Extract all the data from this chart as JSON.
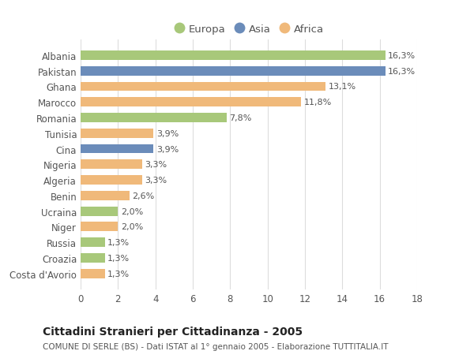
{
  "countries": [
    "Albania",
    "Pakistan",
    "Ghana",
    "Marocco",
    "Romania",
    "Tunisia",
    "Cina",
    "Nigeria",
    "Algeria",
    "Benin",
    "Ucraina",
    "Niger",
    "Russia",
    "Croazia",
    "Costa d'Avorio"
  ],
  "values": [
    16.3,
    16.3,
    13.1,
    11.8,
    7.8,
    3.9,
    3.9,
    3.3,
    3.3,
    2.6,
    2.0,
    2.0,
    1.3,
    1.3,
    1.3
  ],
  "labels": [
    "16,3%",
    "16,3%",
    "13,1%",
    "11,8%",
    "7,8%",
    "3,9%",
    "3,9%",
    "3,3%",
    "3,3%",
    "2,6%",
    "2,0%",
    "2,0%",
    "1,3%",
    "1,3%",
    "1,3%"
  ],
  "continents": [
    "Europa",
    "Asia",
    "Africa",
    "Africa",
    "Europa",
    "Africa",
    "Asia",
    "Africa",
    "Africa",
    "Africa",
    "Europa",
    "Africa",
    "Europa",
    "Europa",
    "Africa"
  ],
  "colors": {
    "Europa": "#a8c87a",
    "Asia": "#6b8cba",
    "Africa": "#f0b97a"
  },
  "xlim": [
    0,
    18
  ],
  "xticks": [
    0,
    2,
    4,
    6,
    8,
    10,
    12,
    14,
    16,
    18
  ],
  "title": "Cittadini Stranieri per Cittadinanza - 2005",
  "subtitle": "COMUNE DI SERLE (BS) - Dati ISTAT al 1° gennaio 2005 - Elaborazione TUTTITALIA.IT",
  "background_color": "#ffffff",
  "grid_color": "#dddddd",
  "bar_height": 0.6,
  "label_fontsize": 8,
  "tick_fontsize": 8.5,
  "title_fontsize": 10,
  "subtitle_fontsize": 7.5
}
